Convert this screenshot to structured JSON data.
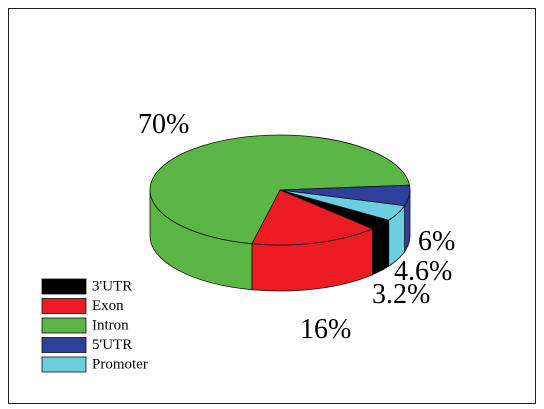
{
  "chart_data": {
    "type": "pie",
    "categories": [
      "3'UTR",
      "Exon",
      "Intron",
      "5'UTR",
      "Promoter"
    ],
    "values": [
      3.2,
      16,
      70,
      6,
      4.6
    ],
    "value_labels": [
      "3.2%",
      "16%",
      "70%",
      "6%",
      "4.6%"
    ],
    "colors": [
      "#000000",
      "#ed1c24",
      "#5cb646",
      "#2e3f9c",
      "#6ccfe0"
    ],
    "legend": "lower left"
  }
}
